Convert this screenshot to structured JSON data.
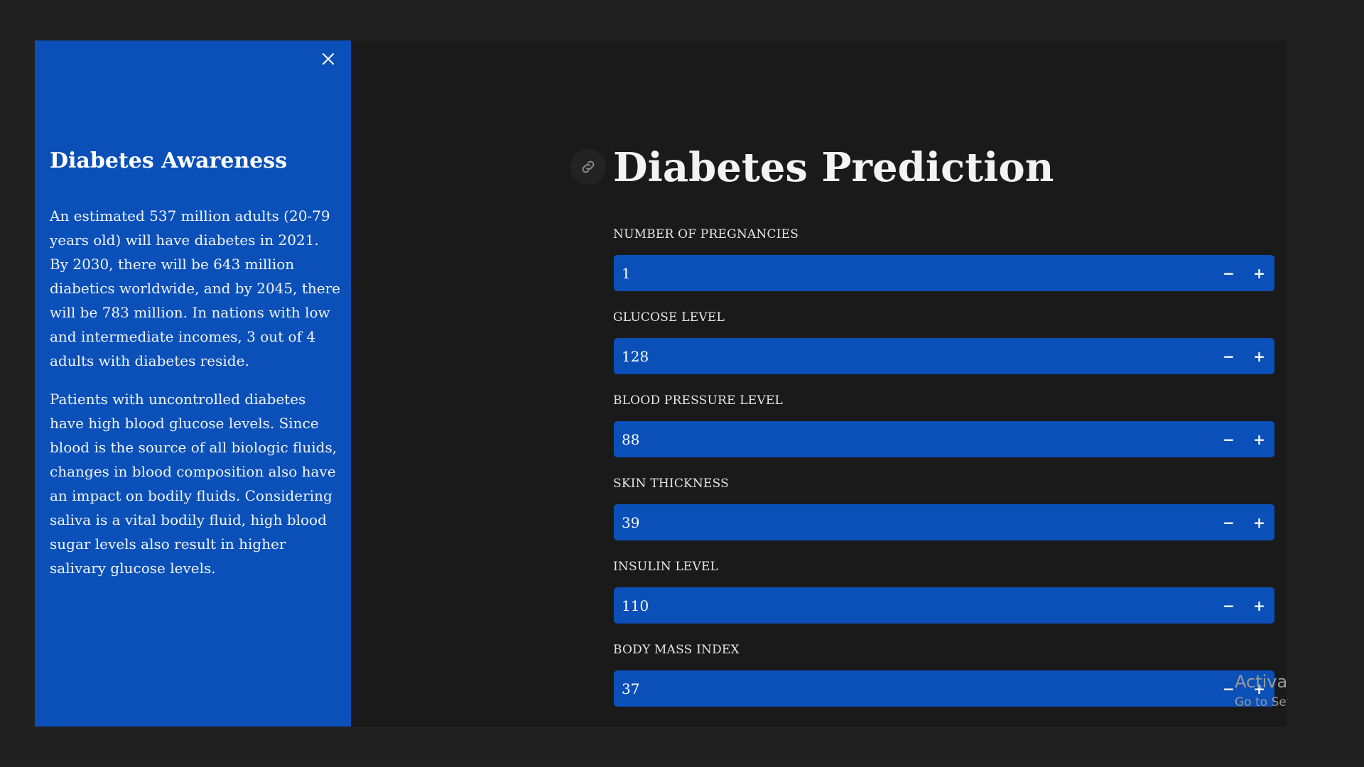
{
  "sidebar": {
    "title": "Diabetes Awareness",
    "paragraphs": [
      "An estimated 537 million adults (20-79 years old) will have diabetes in 2021. By 2030, there will be 643 million diabetics worldwide, and by 2045, there will be 783 million. In nations with low and intermediate incomes, 3 out of 4 adults with diabetes reside.",
      "Patients with uncontrolled diabetes have high blood glucose levels. Since blood is the source of all biologic fluids, changes in blood composition also have an impact on bodily fluids. Considering saliva is a vital bodily fluid, high blood sugar levels also result in higher salivary glucose levels."
    ],
    "close_icon": "close-icon"
  },
  "main": {
    "title": "Diabetes Prediction",
    "anchor_icon": "link-icon",
    "fields": [
      {
        "label": "NUMBER OF PREGNANCIES",
        "value": "1"
      },
      {
        "label": "GLUCOSE LEVEL",
        "value": "128"
      },
      {
        "label": "BLOOD PRESSURE LEVEL",
        "value": "88"
      },
      {
        "label": "SKIN THICKNESS",
        "value": "39"
      },
      {
        "label": "INSULIN LEVEL",
        "value": "110"
      },
      {
        "label": "BODY MASS INDEX",
        "value": "37"
      }
    ],
    "decrement_label": "−",
    "increment_label": "+"
  },
  "watermark": {
    "line1": "Activate W",
    "line2": "Go to Settings"
  },
  "colors": {
    "accent": "#0a50b8",
    "background": "#1a1a1a",
    "outer_background": "#212121"
  }
}
